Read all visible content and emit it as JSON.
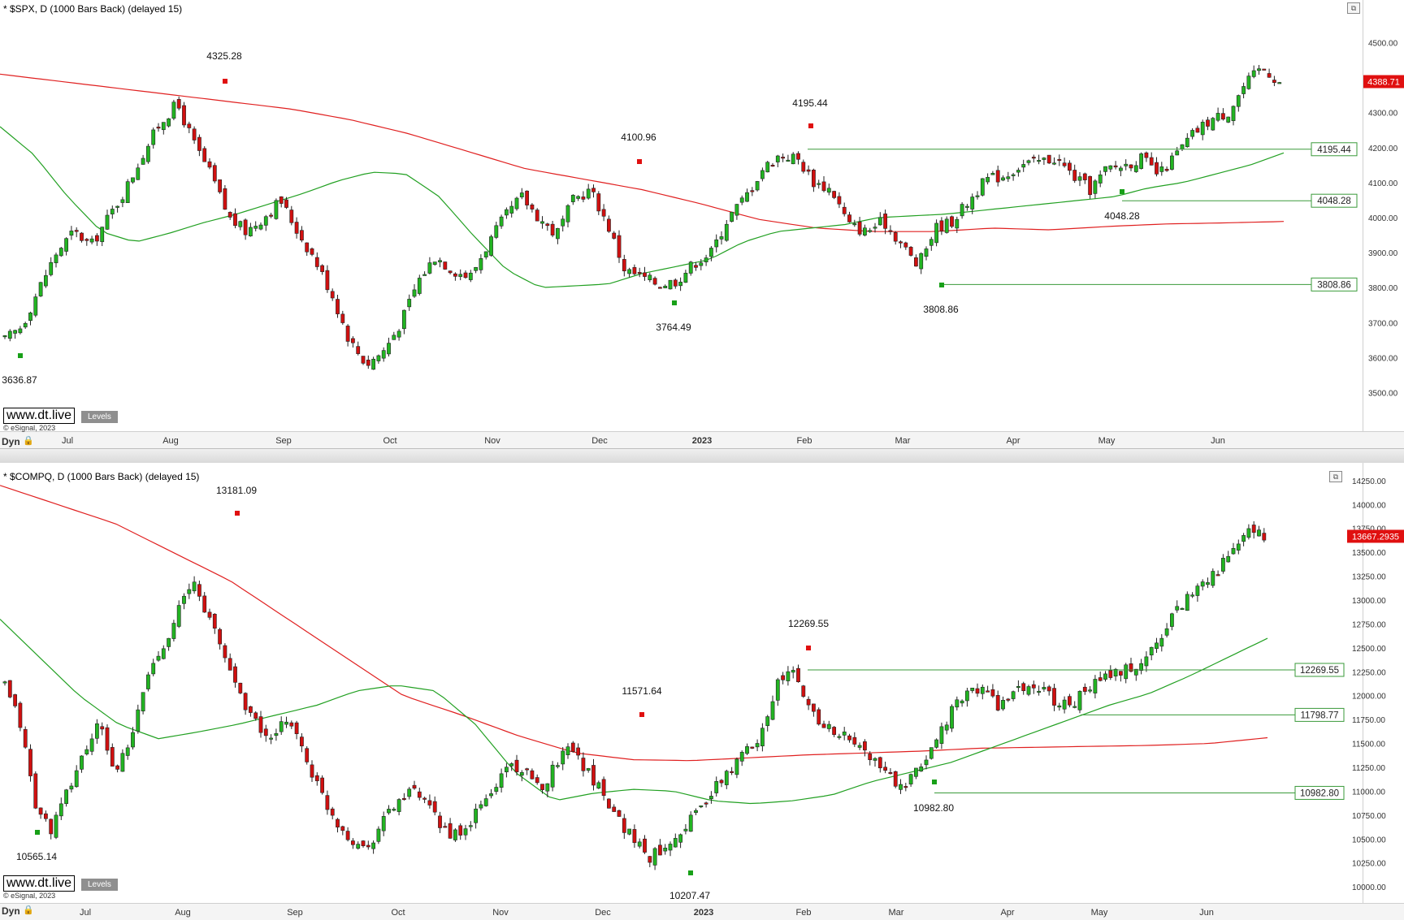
{
  "spx": {
    "title": "* $SPX, D (1000 Bars Back) (delayed 15)",
    "watermark": "www.dt.live",
    "levels_label": "Levels",
    "copyright": "© eSignal, 2023",
    "dyn_label": "Dyn",
    "last_price": "4388.71",
    "colors": {
      "up": "#22b422",
      "down": "#d01010",
      "ma_long": "#e02020",
      "ma_short": "#22a022",
      "level_line": "#3a9a3a",
      "price_tag_bg": "#e01010"
    }
  },
  "comp": {
    "title": "* $COMPQ, D (1000 Bars Back) (delayed 15)",
    "watermark": "www.dt.live",
    "levels_label": "Levels",
    "copyright": "© eSignal, 2023",
    "dyn_label": "Dyn",
    "last_price": "13667.2935",
    "colors": {
      "up": "#22b422",
      "down": "#d01010",
      "ma_long": "#e02020",
      "ma_short": "#22a022",
      "level_line": "#3a9a3a",
      "price_tag_bg": "#e01010"
    }
  },
  "chart_data": [
    {
      "type": "candlestick",
      "title": "$SPX, D (1000 Bars Back) (delayed 15)",
      "symbol": "$SPX",
      "ylim": [
        3450,
        4550
      ],
      "y_ticks": [
        "4500.00",
        "4400.00",
        "4300.00",
        "4200.00",
        "4100.00",
        "4000.00",
        "3900.00",
        "3800.00",
        "3700.00",
        "3600.00",
        "3500.00"
      ],
      "x_ticks": [
        "Jul",
        "Aug",
        "Sep",
        "Oct",
        "Nov",
        "Dec",
        "2023",
        "Feb",
        "Mar",
        "Apr",
        "May",
        "Jun"
      ],
      "close_path": [
        3650,
        3690,
        3800,
        3900,
        3960,
        3920,
        4000,
        4080,
        4180,
        4270,
        4325,
        4210,
        4120,
        4000,
        3960,
        4000,
        4050,
        3960,
        3880,
        3780,
        3650,
        3580,
        3620,
        3700,
        3820,
        3890,
        3850,
        3830,
        3920,
        4000,
        4060,
        4000,
        3950,
        4050,
        4080,
        3980,
        3850,
        3830,
        3810,
        3820,
        3870,
        3900,
        4000,
        4060,
        4140,
        4180,
        4170,
        4100,
        4080,
        3980,
        3960,
        3990,
        3930,
        3860,
        3970,
        3990,
        4050,
        4110,
        4120,
        4150,
        4160,
        4170,
        4120,
        4080,
        4140,
        4150,
        4170,
        4120,
        4180,
        4240,
        4280,
        4300,
        4380,
        4430,
        4388
      ],
      "ma_short_path": [
        4260,
        4180,
        4060,
        3960,
        3930,
        3955,
        3985,
        4010,
        4040,
        4070,
        4105,
        4130,
        4125,
        4060,
        3950,
        3850,
        3800,
        3805,
        3810,
        3840,
        3860,
        3880,
        3930,
        3960,
        3970,
        3980,
        4000,
        4005,
        4010,
        4020,
        4030,
        4040,
        4050,
        4060,
        4085,
        4100,
        4125,
        4150,
        4185
      ],
      "ma_long_path": [
        4410,
        4390,
        4370,
        4350,
        4330,
        4310,
        4280,
        4240,
        4190,
        4140,
        4110,
        4080,
        4040,
        3995,
        3970,
        3960,
        3960,
        3970,
        3965,
        3975,
        3982,
        3985,
        3989
      ],
      "annotations": [
        {
          "label": "4325.28",
          "kind": "high"
        },
        {
          "label": "3636.87",
          "kind": "low"
        },
        {
          "label": "4100.96",
          "kind": "high"
        },
        {
          "label": "3764.49",
          "kind": "low"
        },
        {
          "label": "4195.44",
          "kind": "high"
        },
        {
          "label": "3808.86",
          "kind": "low"
        },
        {
          "label": "4048.28",
          "kind": "low"
        }
      ],
      "levels": [
        "4195.44",
        "4048.28",
        "3808.86"
      ],
      "last_price": "4388.71"
    },
    {
      "type": "candlestick",
      "title": "$COMPQ, D (1000 Bars Back) (delayed 15)",
      "symbol": "$COMPQ",
      "ylim": [
        9950,
        14300
      ],
      "y_ticks": [
        "14250.00",
        "14000.00",
        "13750.00",
        "13500.00",
        "13250.00",
        "13000.00",
        "12750.00",
        "12500.00",
        "12250.00",
        "12000.00",
        "11750.00",
        "11500.00",
        "11250.00",
        "11000.00",
        "10750.00",
        "10500.00",
        "10250.00",
        "10000.00"
      ],
      "x_ticks": [
        "Jul",
        "Aug",
        "Sep",
        "Oct",
        "Nov",
        "Dec",
        "2023",
        "Feb",
        "Mar",
        "Apr",
        "May",
        "Jun"
      ],
      "close_path": [
        12100,
        11700,
        10800,
        10600,
        11000,
        11400,
        11700,
        11200,
        11500,
        12200,
        12500,
        12900,
        13181,
        12800,
        12400,
        12000,
        11700,
        11500,
        11800,
        11400,
        11000,
        10700,
        10500,
        10400,
        10700,
        10900,
        11000,
        10800,
        10600,
        10500,
        10800,
        11000,
        11300,
        11200,
        11000,
        11300,
        11500,
        11200,
        11000,
        10700,
        10500,
        10300,
        10450,
        10600,
        10800,
        11000,
        11200,
        11400,
        11600,
        12100,
        12269,
        11900,
        11700,
        11600,
        11500,
        11350,
        11200,
        11000,
        11200,
        11500,
        11800,
        12000,
        12100,
        11900,
        12000,
        12100,
        12050,
        11900,
        11950,
        12100,
        12200,
        12250,
        12300,
        12500,
        12800,
        13000,
        13200,
        13300,
        13500,
        13700,
        13667
      ],
      "ma_short_path": [
        12800,
        12400,
        12000,
        11700,
        11550,
        11620,
        11700,
        11800,
        11900,
        12050,
        12110,
        12050,
        11700,
        11200,
        10900,
        10980,
        11020,
        11000,
        10900,
        10870,
        10900,
        10960,
        11100,
        11200,
        11300,
        11450,
        11600,
        11750,
        11900,
        12020,
        12200,
        12400,
        12600
      ],
      "ma_long_path": [
        14200,
        14000,
        13800,
        13500,
        13200,
        12800,
        12400,
        12000,
        11800,
        11580,
        11400,
        11330,
        11320,
        11350,
        11380,
        11400,
        11420,
        11450,
        11460,
        11470,
        11480,
        11500,
        11560
      ],
      "annotations": [
        {
          "label": "13181.09",
          "kind": "high"
        },
        {
          "label": "10565.14",
          "kind": "low"
        },
        {
          "label": "11571.64",
          "kind": "high"
        },
        {
          "label": "10207.47",
          "kind": "low"
        },
        {
          "label": "12269.55",
          "kind": "high"
        },
        {
          "label": "10982.80",
          "kind": "low"
        }
      ],
      "levels": [
        "12269.55",
        "11798.77",
        "10982.80"
      ],
      "last_price": "13667.2935"
    }
  ]
}
